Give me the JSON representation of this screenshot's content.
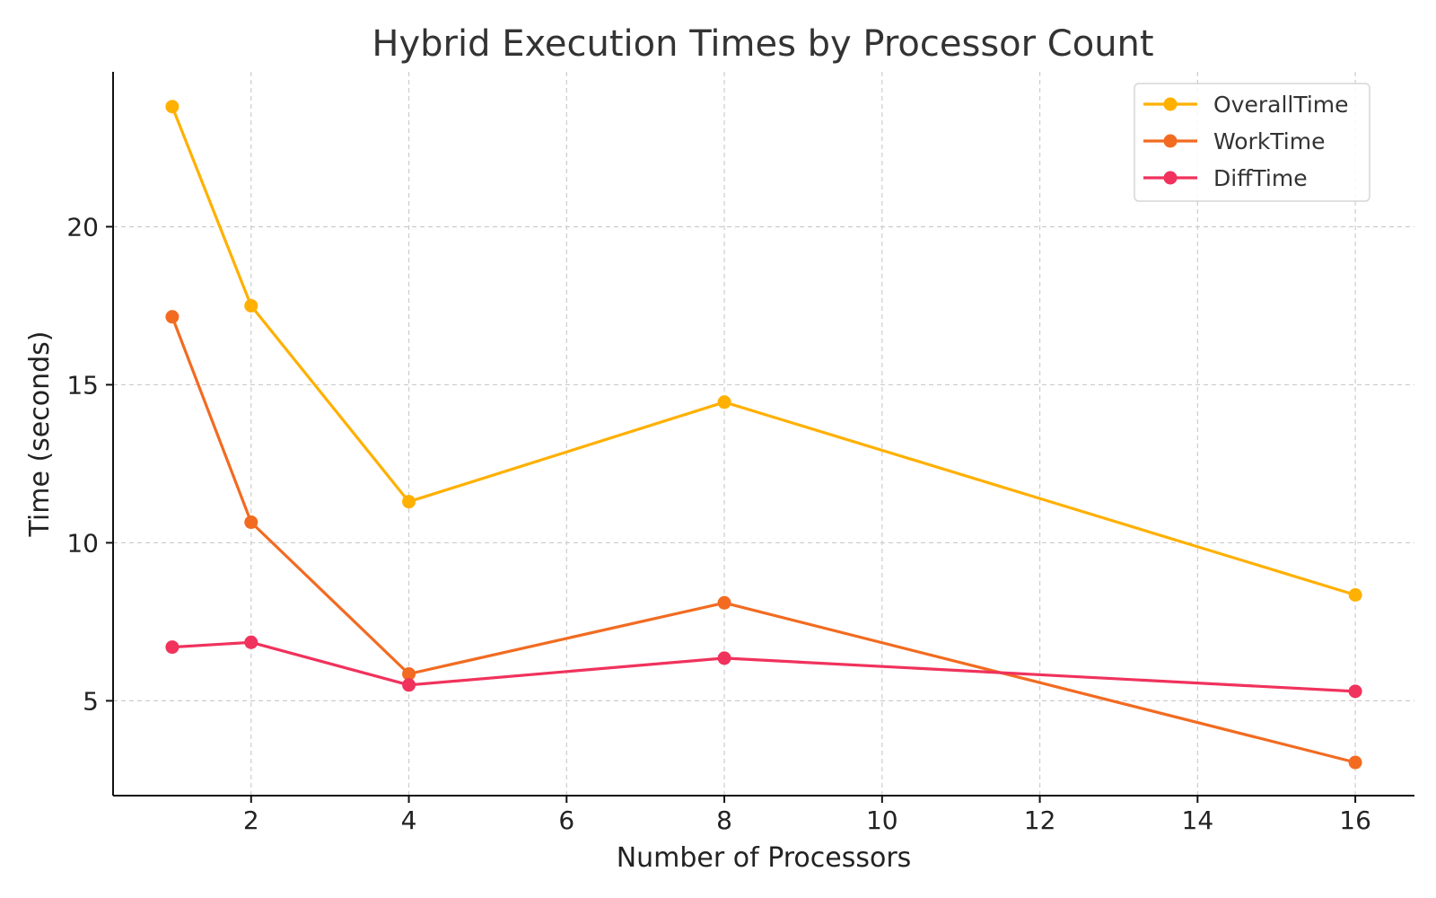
{
  "chart_data": {
    "type": "line",
    "title": "Hybrid Execution Times by Processor Count",
    "xlabel": "Number of Processors",
    "ylabel": "Time (seconds)",
    "x": [
      1,
      2,
      4,
      8,
      16
    ],
    "xlim": [
      0.25,
      16.75
    ],
    "ylim": [
      2,
      24.9
    ],
    "xticks": [
      2,
      4,
      6,
      8,
      10,
      12,
      14,
      16
    ],
    "yticks": [
      5,
      10,
      15,
      20
    ],
    "grid": true,
    "legend_position": "top-right",
    "series": [
      {
        "name": "OverallTime",
        "color": "#FFB000",
        "values": [
          23.8,
          17.5,
          11.3,
          14.45,
          8.35
        ]
      },
      {
        "name": "WorkTime",
        "color": "#F26B21",
        "values": [
          17.15,
          10.65,
          5.85,
          8.1,
          3.05
        ]
      },
      {
        "name": "DiffTime",
        "color": "#F0325C",
        "values": [
          6.7,
          6.85,
          5.5,
          6.35,
          5.3
        ]
      }
    ]
  }
}
